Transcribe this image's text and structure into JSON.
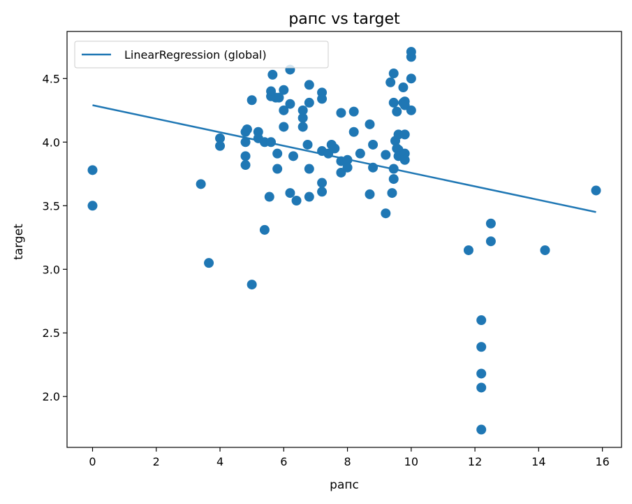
{
  "chart_data": {
    "type": "scatter",
    "title": "рапс vs target",
    "xlabel": "рапс",
    "ylabel": "target",
    "xlim": [
      -0.8,
      16.6
    ],
    "ylim": [
      1.6,
      4.87
    ],
    "xticks": [
      0,
      2,
      4,
      6,
      8,
      10,
      12,
      14,
      16
    ],
    "yticks": [
      2.0,
      2.5,
      3.0,
      3.5,
      4.0,
      4.5
    ],
    "grid": false,
    "legend_position": "top-left",
    "colors": {
      "series": "#1f77b4"
    },
    "series": [
      {
        "kind": "line",
        "name": "LinearRegression (global)",
        "x": [
          0,
          15.8
        ],
        "y": [
          4.29,
          3.45
        ]
      },
      {
        "kind": "scatter",
        "x": [
          0,
          0,
          3.4,
          3.65,
          4,
          4,
          4.8,
          4.8,
          4.8,
          4.8,
          4.85,
          4.85,
          5,
          5,
          5.2,
          5.2,
          5.4,
          5.4,
          5.55,
          5.6,
          5.6,
          5.6,
          5.65,
          5.75,
          5.8,
          5.8,
          5.85,
          6,
          6,
          6,
          6.2,
          6.2,
          6.2,
          6.3,
          6.4,
          6.6,
          6.6,
          6.6,
          6.75,
          6.8,
          6.8,
          6.8,
          6.8,
          7.2,
          7.2,
          7.2,
          7.2,
          7.2,
          7.4,
          7.5,
          7.6,
          7.8,
          7.8,
          7.8,
          8,
          8,
          8.2,
          8.2,
          8.4,
          8.7,
          8.7,
          8.8,
          8.8,
          9.2,
          9.2,
          9.35,
          9.4,
          9.45,
          9.45,
          9.45,
          9.45,
          9.5,
          9.55,
          9.55,
          9.6,
          9.6,
          9.6,
          9.75,
          9.75,
          9.8,
          9.8,
          9.8,
          9.8,
          9.8,
          10,
          10,
          10,
          10,
          11.8,
          12.2,
          12.2,
          12.2,
          12.2,
          12.2,
          12.5,
          12.5,
          14.2,
          15.8
        ],
        "y": [
          3.78,
          3.5,
          3.67,
          3.05,
          4.03,
          3.97,
          4.08,
          4.0,
          3.89,
          3.82,
          4.1,
          4.1,
          4.33,
          2.88,
          4.08,
          4.03,
          4.0,
          3.31,
          3.57,
          4.4,
          4.36,
          4.0,
          4.53,
          4.35,
          3.91,
          3.79,
          4.35,
          4.41,
          4.25,
          4.12,
          4.57,
          4.3,
          3.6,
          3.89,
          3.54,
          4.25,
          4.19,
          4.12,
          3.98,
          4.45,
          4.31,
          3.79,
          3.57,
          4.39,
          4.34,
          3.93,
          3.68,
          3.61,
          3.91,
          3.98,
          3.95,
          4.23,
          3.85,
          3.76,
          3.86,
          3.8,
          4.24,
          4.08,
          3.91,
          4.14,
          3.59,
          3.98,
          3.8,
          3.9,
          3.44,
          4.47,
          3.6,
          4.54,
          4.31,
          3.79,
          3.71,
          4.01,
          4.24,
          3.95,
          4.06,
          3.94,
          3.89,
          4.43,
          4.31,
          4.32,
          4.29,
          4.06,
          3.91,
          3.86,
          4.71,
          4.67,
          4.5,
          4.25,
          3.15,
          2.6,
          2.39,
          2.18,
          2.07,
          1.74,
          3.36,
          3.22,
          3.15,
          3.62
        ]
      }
    ]
  }
}
